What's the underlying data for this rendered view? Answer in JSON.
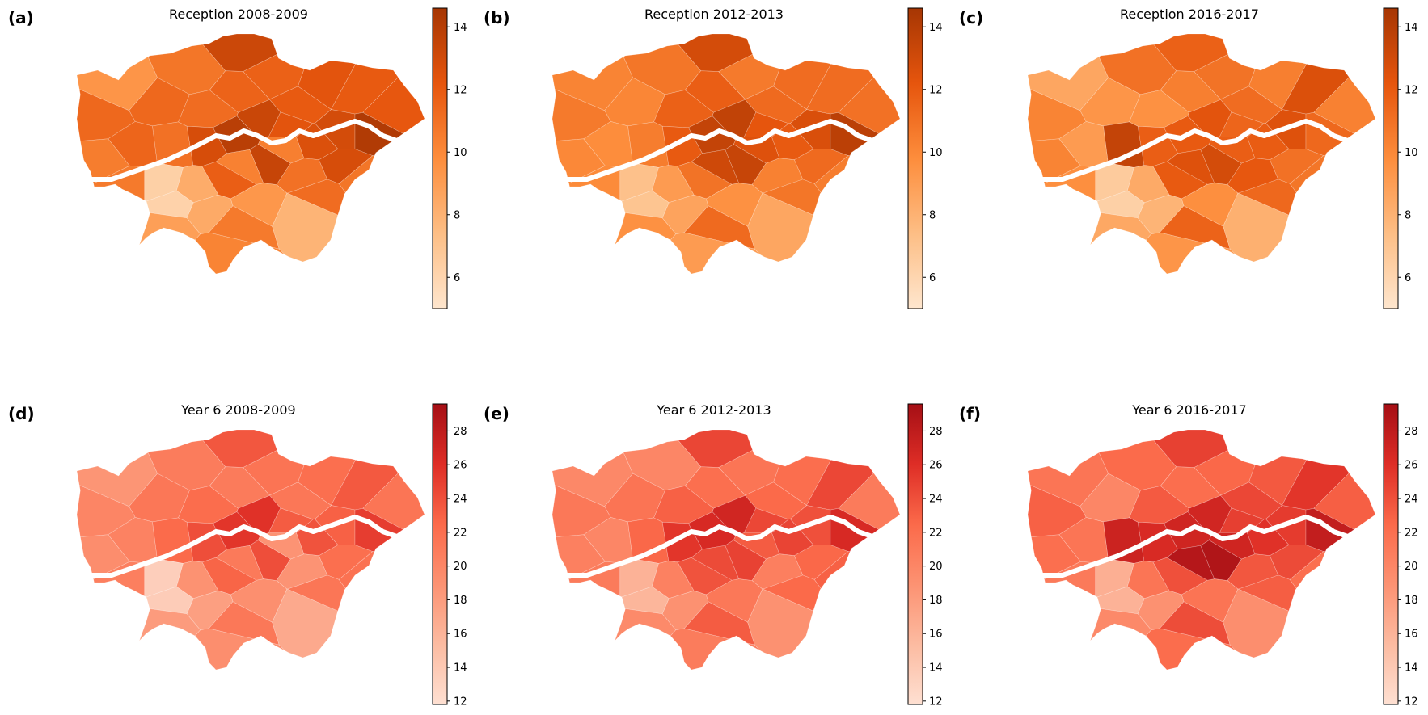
{
  "figure": {
    "colormaps": {
      "reception": [
        "#fee6ce",
        "#fdbe85",
        "#fd8d3c",
        "#e6550d",
        "#a63603"
      ],
      "year6": [
        "#fee0d2",
        "#fcbba1",
        "#fc9272",
        "#fb6a4a",
        "#de2d26",
        "#a50f15"
      ]
    },
    "panels": [
      {
        "letter": "(a)",
        "title": "Reception 2008-2009",
        "cmap": "reception",
        "colorbar": {
          "min": 5,
          "max": 14.6,
          "ticks": [
            6,
            8,
            10,
            12,
            14
          ]
        },
        "values": [
          11.4,
          9.4,
          10.5,
          13.2,
          10.8,
          11.4,
          11.0,
          11.2,
          11.6,
          11.7,
          12.0,
          12.3,
          12.0,
          12.1,
          11.5,
          12.8,
          13.9,
          13.3,
          12.3,
          12.6,
          12.9,
          14.2,
          13.4,
          11.0,
          12.8,
          10.8,
          10.6,
          6.3,
          6.2,
          8.3,
          11.8,
          8.9,
          8.4,
          10.6,
          9.3,
          7.9,
          11.2,
          10.2,
          10.4,
          10.3
        ]
      },
      {
        "letter": "(b)",
        "title": "Reception 2012-2013",
        "cmap": "reception",
        "colorbar": {
          "min": 5,
          "max": 14.6,
          "ticks": [
            6,
            8,
            10,
            12,
            14
          ]
        },
        "values": [
          10.6,
          10.2,
          10.0,
          12.9,
          10.8,
          10.1,
          10.5,
          11.7,
          11.8,
          10.6,
          11.3,
          11.2,
          11.2,
          11.0,
          9.8,
          12.0,
          13.5,
          13.6,
          12.2,
          12.0,
          12.7,
          13.8,
          13.4,
          10.3,
          11.3,
          10.5,
          9.9,
          7.2,
          7.0,
          9.1,
          10.9,
          9.6,
          8.7,
          11.3,
          9.6,
          8.6,
          10.8,
          9.1,
          12.5,
          13.1
        ]
      },
      {
        "letter": "(c)",
        "title": "Reception 2016-2017",
        "cmap": "reception",
        "colorbar": {
          "min": 5,
          "max": 14.6,
          "ticks": [
            6,
            8,
            10,
            12,
            14
          ]
        },
        "values": [
          10.2,
          8.6,
          10.2,
          11.7,
          11.0,
          9.4,
          13.5,
          9.6,
          10.4,
          10.9,
          11.2,
          10.4,
          12.6,
          10.3,
          9.1,
          11.8,
          12.0,
          12.3,
          11.5,
          11.9,
          12.5,
          11.4,
          12.9,
          12.1,
          11.0,
          10.8,
          9.7,
          6.6,
          6.3,
          8.4,
          12.0,
          8.5,
          7.9,
          11.6,
          9.7,
          8.1,
          11.4,
          9.4,
          11.8,
          12.5
        ]
      },
      {
        "letter": "(d)",
        "title": "Year 6 2008-2009",
        "cmap": "year6",
        "colorbar": {
          "min": 11.8,
          "max": 29.6,
          "ticks": [
            12,
            14,
            16,
            18,
            20,
            22,
            24,
            26,
            28
          ]
        },
        "values": [
          20.1,
          18.7,
          19.4,
          23.6,
          20.9,
          21.3,
          22.4,
          22.2,
          21.0,
          21.6,
          21.3,
          22.0,
          23.5,
          21.5,
          20.3,
          24.1,
          25.6,
          25.8,
          23.3,
          23.8,
          23.0,
          25.1,
          24.1,
          18.8,
          22.0,
          21.8,
          20.6,
          13.5,
          13.7,
          18.9,
          22.8,
          18.1,
          17.8,
          21.2,
          19.2,
          16.9,
          21.4,
          19.3,
          18.8,
          21.1
        ]
      },
      {
        "letter": "(e)",
        "title": "Year 6 2012-2013",
        "cmap": "year6",
        "colorbar": {
          "min": 11.8,
          "max": 29.6,
          "ticks": [
            12,
            14,
            16,
            18,
            20,
            22,
            24,
            26,
            28
          ]
        },
        "values": [
          21.2,
          19.8,
          20.5,
          24.6,
          20.0,
          21.6,
          22.6,
          23.0,
          22.0,
          21.5,
          22.5,
          22.1,
          24.5,
          21.0,
          20.0,
          25.6,
          26.5,
          26.9,
          24.5,
          24.7,
          24.0,
          26.5,
          24.8,
          20.6,
          22.6,
          23.0,
          21.0,
          16.1,
          15.8,
          20.4,
          23.8,
          19.6,
          19.0,
          23.3,
          21.2,
          19.0,
          22.5,
          20.9,
          23.3,
          24.3
        ]
      },
      {
        "letter": "(f)",
        "title": "Year 6 2016-2017",
        "cmap": "year6",
        "colorbar": {
          "min": 11.8,
          "max": 29.6,
          "ticks": [
            12,
            14,
            16,
            18,
            20,
            22,
            24,
            26,
            28
          ]
        },
        "values": [
          23.0,
          21.5,
          22.0,
          24.9,
          22.4,
          20.0,
          27.2,
          23.4,
          22.1,
          22.6,
          24.5,
          23.5,
          25.6,
          23.1,
          21.5,
          26.4,
          27.0,
          26.9,
          25.0,
          25.8,
          25.2,
          27.8,
          28.9,
          23.6,
          24.3,
          22.0,
          21.1,
          16.4,
          16.1,
          21.5,
          24.0,
          19.7,
          19.0,
          24.2,
          21.6,
          19.3,
          23.2,
          22.2,
          27.0,
          28.6
        ]
      }
    ]
  }
}
